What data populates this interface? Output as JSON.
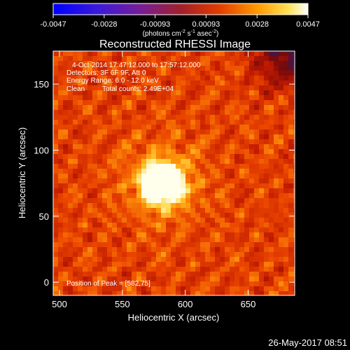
{
  "chart_data": {
    "type": "heatmap",
    "title": "Reconstructed RHESSI Image",
    "xlabel": "Heliocentric X (arcsec)",
    "ylabel": "Heliocentric Y (arcsec)",
    "xlim": [
      495,
      687
    ],
    "ylim": [
      -10,
      175
    ],
    "x_ticks": [
      "500",
      "550",
      "600",
      "650"
    ],
    "y_ticks": [
      "0",
      "50",
      "100",
      "150"
    ],
    "x_tick_values": [
      500,
      550,
      600,
      650
    ],
    "y_tick_values": [
      0,
      50,
      100,
      150
    ],
    "colorbar": {
      "ticks": [
        "-0.0047",
        "-0.0028",
        "-0.00093",
        "0.00093",
        "0.0028",
        "0.0047"
      ],
      "range": [
        -0.0047,
        0.0047
      ],
      "unit_label": "(photons cm",
      "unit_exp1": "-2",
      "unit_mid": " s",
      "unit_exp2": "-1",
      "unit_end": " asec",
      "unit_exp3": "-2",
      "unit_close": ")"
    },
    "annotations": {
      "time_range": "4-Oct-2014 17:47:12.000 to 17:57:12.000",
      "detectors": "Detectors: 3F 6F 9F, Att 0",
      "energy": "Energy Range: 6.0 - 12.0 keV",
      "method": "Clean",
      "counts": "Total counts: 2.49E+04",
      "peak": "Position of Peak = [582,75]"
    },
    "peak": {
      "x": 582,
      "y": 75
    },
    "timestamp": "26-May-2017 08:51"
  }
}
